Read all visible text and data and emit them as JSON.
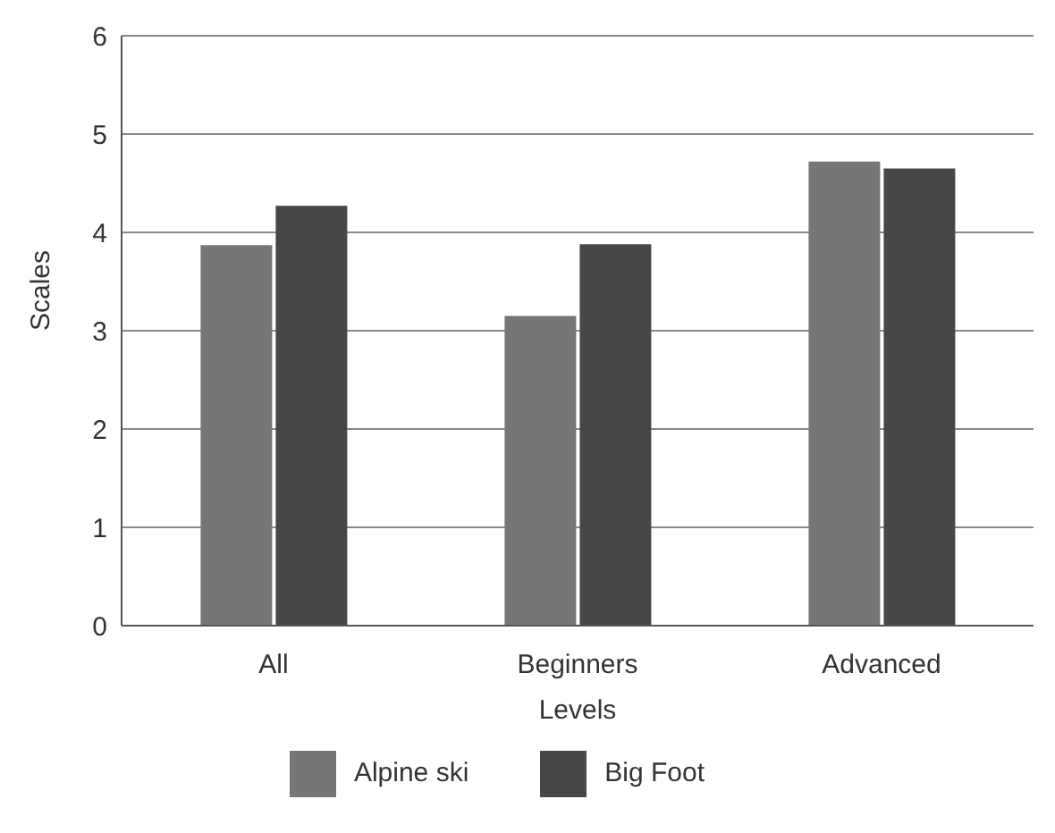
{
  "chart_data": {
    "type": "bar",
    "xlabel": "Levels",
    "ylabel": "Scales",
    "categories": [
      "All",
      "Beginners",
      "Advanced"
    ],
    "series": [
      {
        "name": "Alpine ski",
        "color": "#767676",
        "values": [
          3.87,
          3.15,
          4.72
        ]
      },
      {
        "name": "Big Foot",
        "color": "#474747",
        "values": [
          4.27,
          3.88,
          4.65
        ]
      }
    ],
    "ylim": [
      0,
      6
    ],
    "yticks": [
      0,
      1,
      2,
      3,
      4,
      5,
      6
    ],
    "grid": "y",
    "legend": "bottom"
  }
}
